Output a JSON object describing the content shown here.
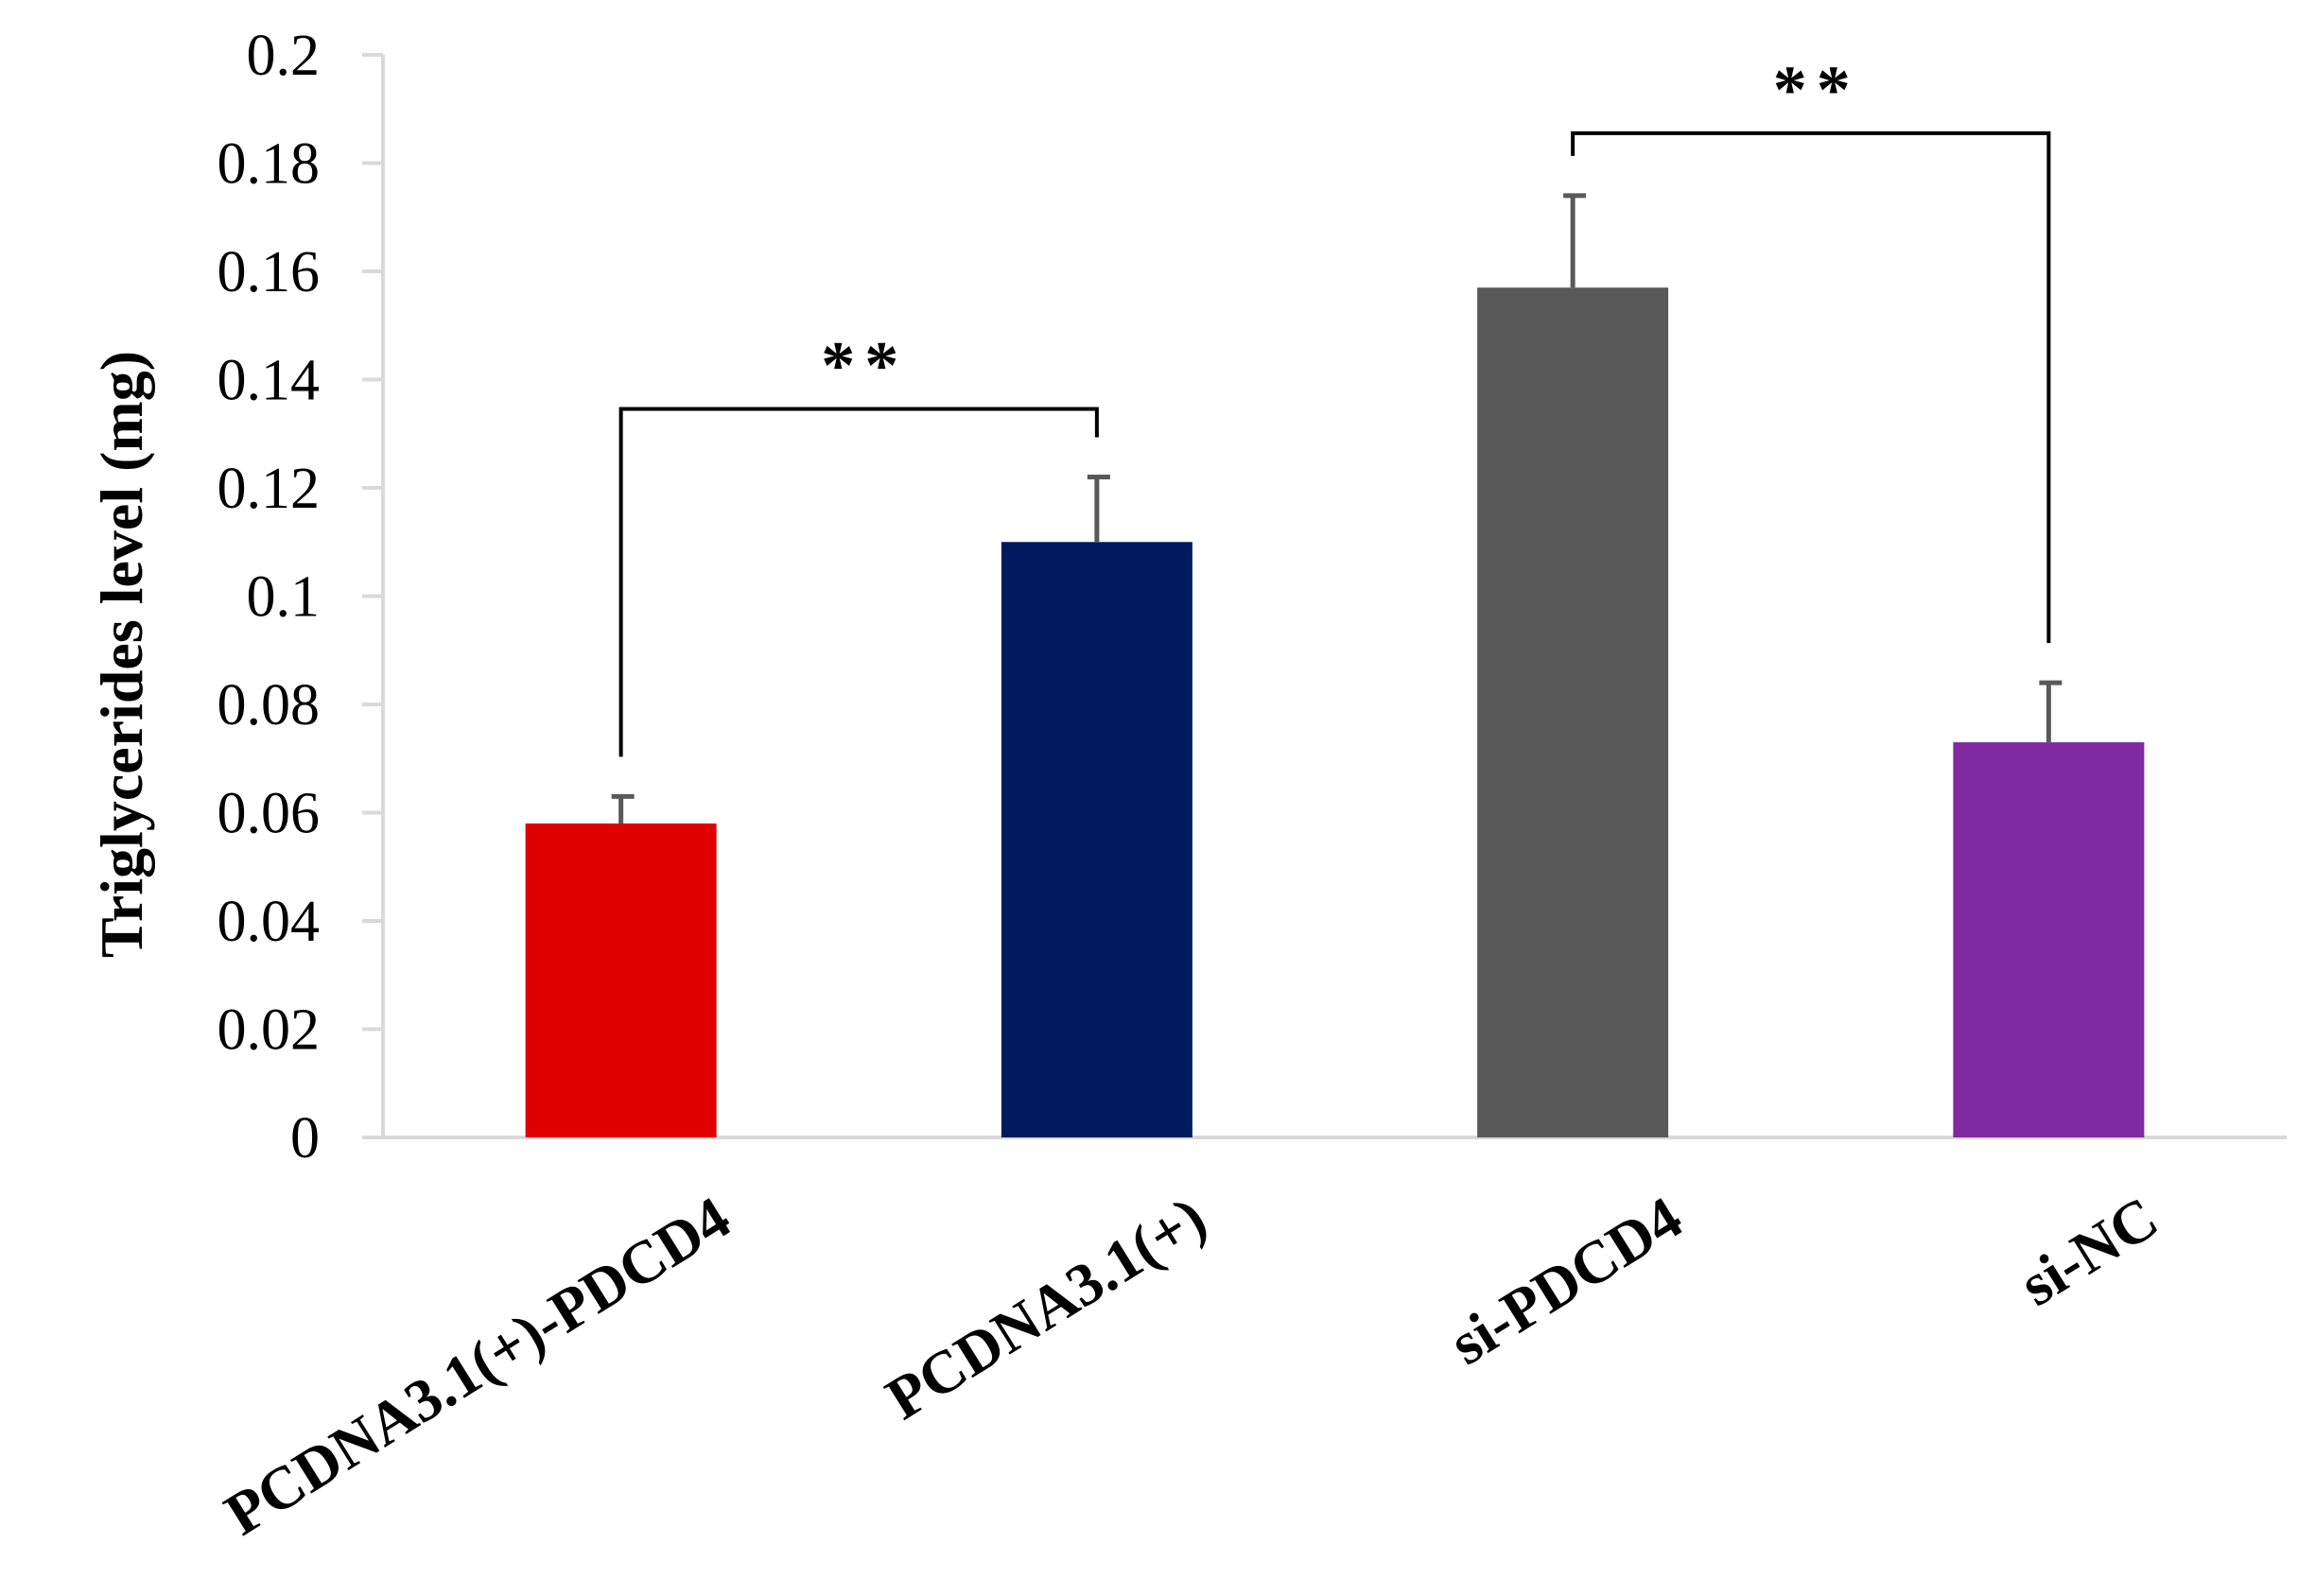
{
  "chart_data": {
    "type": "bar",
    "title": "",
    "xlabel": "",
    "ylabel": "Triglycerides level (mg)",
    "ylim": [
      0,
      0.2
    ],
    "yticks": [
      0,
      0.02,
      0.04,
      0.06,
      0.08,
      0.1,
      0.12,
      0.14,
      0.16,
      0.18,
      0.2
    ],
    "ytick_labels": [
      "0",
      "0.02",
      "0.04",
      "0.06",
      "0.08",
      "0.1",
      "0.12",
      "0.14",
      "0.16",
      "0.18",
      "0.2"
    ],
    "grid": false,
    "categories": [
      "PCDNA3.1(+)-PDCD4",
      "PCDNA3.1(+)",
      "si-PDCD4",
      "si-NC"
    ],
    "values": [
      0.058,
      0.11,
      0.157,
      0.073
    ],
    "errors": [
      0.005,
      0.012,
      0.017,
      0.011
    ],
    "colors": [
      "#e00000",
      "#001a5e",
      "#595959",
      "#7f2aa0"
    ],
    "significance": [
      {
        "from": 0,
        "to": 1,
        "label": "**"
      },
      {
        "from": 2,
        "to": 3,
        "label": "**"
      }
    ]
  }
}
